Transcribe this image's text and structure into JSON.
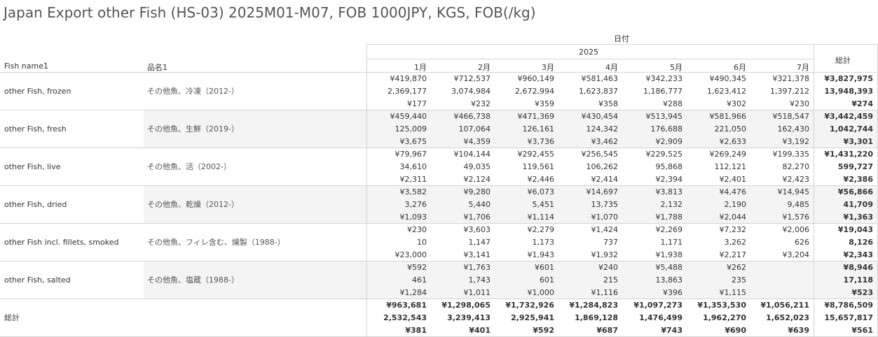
{
  "title": "Japan Export other Fish (HS-03) 2025M01-M07, FOB 1000JPY, KGS, FOB(/kg)",
  "header": {
    "date_label": "日付",
    "year": "2025",
    "col_name_en": "Fish name1",
    "col_name_ja": "品名1",
    "months": [
      "1月",
      "2月",
      "3月",
      "4月",
      "5月",
      "6月",
      "7月"
    ],
    "total_label": "総計"
  },
  "rows": [
    {
      "en": "other Fish, frozen",
      "ja": "その他魚、冷凍（2012-）",
      "fob": [
        "¥419,870",
        "¥712,537",
        "¥960,149",
        "¥581,463",
        "¥342,233",
        "¥490,345",
        "¥321,378"
      ],
      "kgs": [
        "2,369,177",
        "3,074,984",
        "2,672,994",
        "1,623,837",
        "1,186,777",
        "1,623,412",
        "1,397,212"
      ],
      "perkg": [
        "¥177",
        "¥232",
        "¥359",
        "¥358",
        "¥288",
        "¥302",
        "¥230"
      ],
      "total": [
        "¥3,827,975",
        "13,948,393",
        "¥274"
      ]
    },
    {
      "en": "other Fish, fresh",
      "ja": "その他魚、生鮮（2019-）",
      "fob": [
        "¥459,440",
        "¥466,738",
        "¥471,369",
        "¥430,454",
        "¥513,945",
        "¥581,966",
        "¥518,547"
      ],
      "kgs": [
        "125,009",
        "107,064",
        "126,161",
        "124,342",
        "176,688",
        "221,050",
        "162,430"
      ],
      "perkg": [
        "¥3,675",
        "¥4,359",
        "¥3,736",
        "¥3,462",
        "¥2,909",
        "¥2,633",
        "¥3,192"
      ],
      "total": [
        "¥3,442,459",
        "1,042,744",
        "¥3,301"
      ]
    },
    {
      "en": "other Fish, live",
      "ja": "その他魚、活（2002-）",
      "fob": [
        "¥79,967",
        "¥104,144",
        "¥292,455",
        "¥256,545",
        "¥229,525",
        "¥269,249",
        "¥199,335"
      ],
      "kgs": [
        "34,610",
        "49,035",
        "119,561",
        "106,262",
        "95,868",
        "112,121",
        "82,270"
      ],
      "perkg": [
        "¥2,311",
        "¥2,124",
        "¥2,446",
        "¥2,414",
        "¥2,394",
        "¥2,401",
        "¥2,423"
      ],
      "total": [
        "¥1,431,220",
        "599,727",
        "¥2,386"
      ]
    },
    {
      "en": "other Fish, dried",
      "ja": "その他魚、乾燥（2012-）",
      "fob": [
        "¥3,582",
        "¥9,280",
        "¥6,073",
        "¥14,697",
        "¥3,813",
        "¥4,476",
        "¥14,945"
      ],
      "kgs": [
        "3,276",
        "5,440",
        "5,451",
        "13,735",
        "2,132",
        "2,190",
        "9,485"
      ],
      "perkg": [
        "¥1,093",
        "¥1,706",
        "¥1,114",
        "¥1,070",
        "¥1,788",
        "¥2,044",
        "¥1,576"
      ],
      "total": [
        "¥56,866",
        "41,709",
        "¥1,363"
      ]
    },
    {
      "en": "other Fish incl. fillets, smoked",
      "ja": "その他魚、フィレ含む、燻製（1988-）",
      "fob": [
        "¥230",
        "¥3,603",
        "¥2,279",
        "¥1,424",
        "¥2,269",
        "¥7,232",
        "¥2,006"
      ],
      "kgs": [
        "10",
        "1,147",
        "1,173",
        "737",
        "1,171",
        "3,262",
        "626"
      ],
      "perkg": [
        "¥23,000",
        "¥3,141",
        "¥1,943",
        "¥1,932",
        "¥1,938",
        "¥2,217",
        "¥3,204"
      ],
      "total": [
        "¥19,043",
        "8,126",
        "¥2,343"
      ]
    },
    {
      "en": "other Fish, salted",
      "ja": "その他魚、塩蔵（1988-）",
      "fob": [
        "¥592",
        "¥1,763",
        "¥601",
        "¥240",
        "¥5,488",
        "¥262",
        ""
      ],
      "kgs": [
        "461",
        "1,743",
        "601",
        "215",
        "13,863",
        "235",
        ""
      ],
      "perkg": [
        "¥1,284",
        "¥1,011",
        "¥1,000",
        "¥1,116",
        "¥396",
        "¥1,115",
        ""
      ],
      "total": [
        "¥8,946",
        "17,118",
        "¥523"
      ]
    }
  ],
  "grand_total": {
    "label": "総計",
    "fob": [
      "¥963,681",
      "¥1,298,065",
      "¥1,732,926",
      "¥1,284,823",
      "¥1,097,273",
      "¥1,353,530",
      "¥1,056,211"
    ],
    "kgs": [
      "2,532,543",
      "3,239,413",
      "2,925,941",
      "1,869,128",
      "1,476,499",
      "1,962,270",
      "1,652,023"
    ],
    "perkg": [
      "¥381",
      "¥401",
      "¥592",
      "¥687",
      "¥743",
      "¥690",
      "¥639"
    ],
    "total": [
      "¥8,786,509",
      "15,657,817",
      "¥561"
    ]
  }
}
